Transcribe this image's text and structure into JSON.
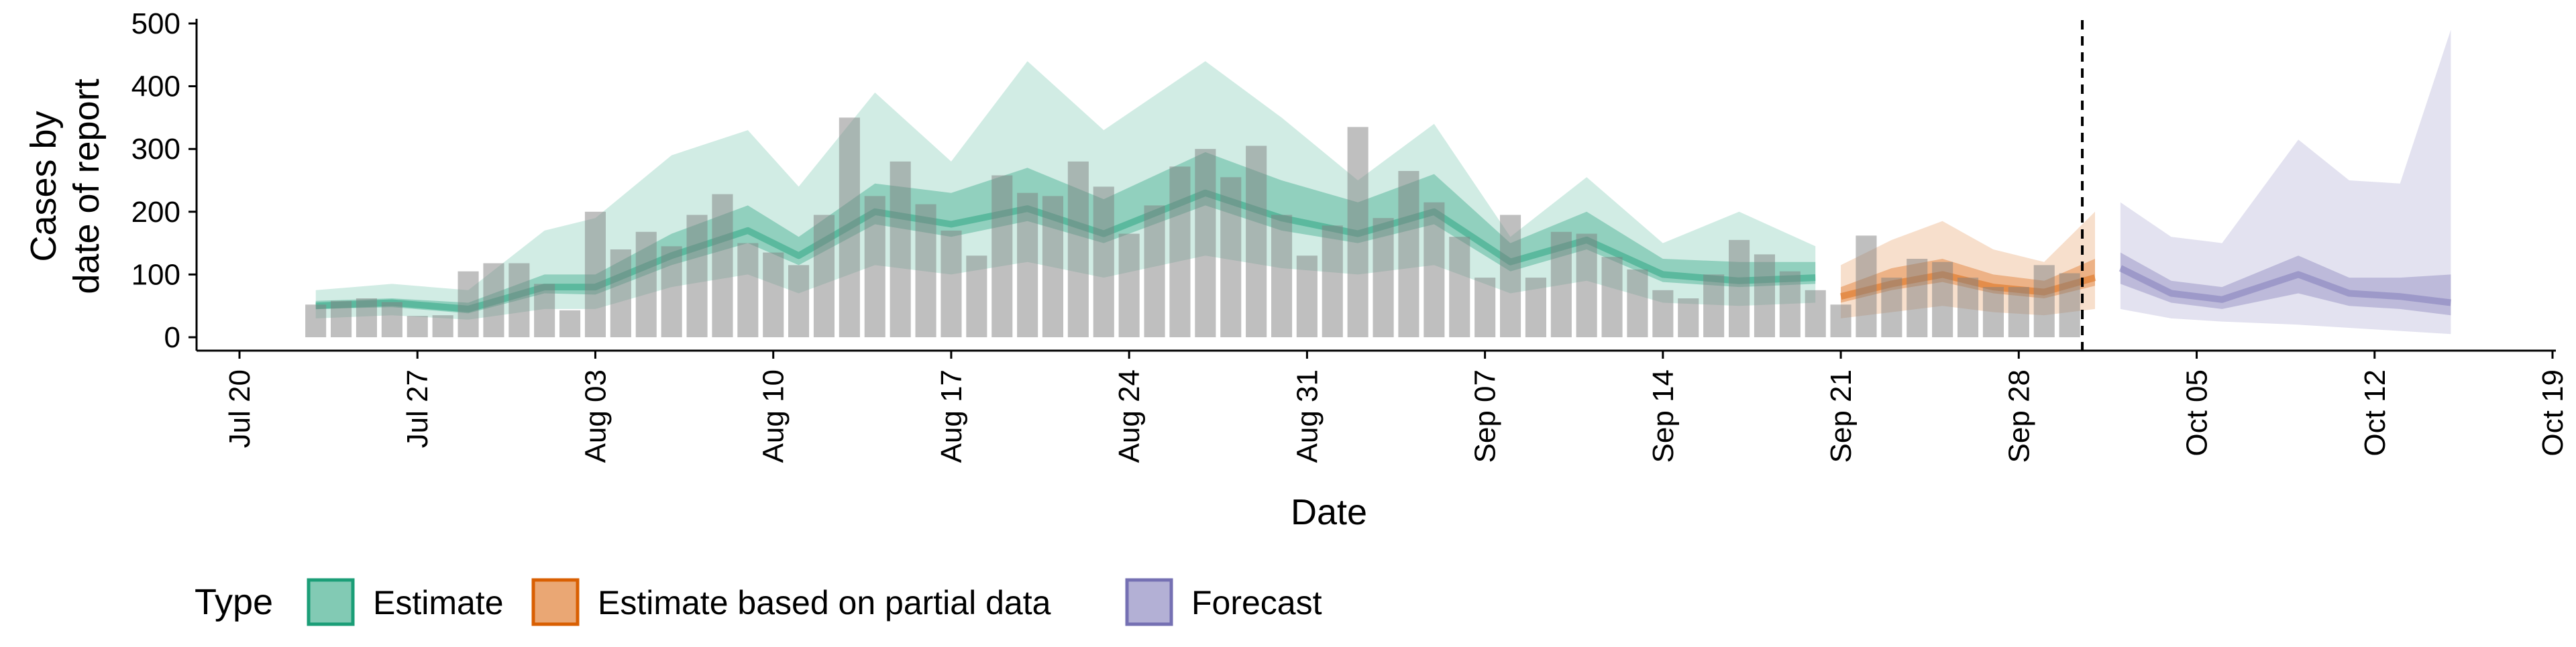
{
  "chart_data": {
    "type": "bar",
    "xlabel": "Date",
    "ylabel_lines": [
      "Cases by",
      "date of report"
    ],
    "ylim": [
      0,
      500
    ],
    "y_ticks": [
      0,
      100,
      200,
      300,
      400,
      500
    ],
    "x_domain": [
      "2020-07-20",
      "2020-10-19"
    ],
    "x_ticks": [
      {
        "date": "2020-07-20",
        "label": "Jul 20"
      },
      {
        "date": "2020-07-27",
        "label": "Jul 27"
      },
      {
        "date": "2020-08-03",
        "label": "Aug 03"
      },
      {
        "date": "2020-08-10",
        "label": "Aug 10"
      },
      {
        "date": "2020-08-17",
        "label": "Aug 17"
      },
      {
        "date": "2020-08-24",
        "label": "Aug 24"
      },
      {
        "date": "2020-08-31",
        "label": "Aug 31"
      },
      {
        "date": "2020-09-07",
        "label": "Sep 07"
      },
      {
        "date": "2020-09-14",
        "label": "Sep 14"
      },
      {
        "date": "2020-09-21",
        "label": "Sep 21"
      },
      {
        "date": "2020-09-28",
        "label": "Sep 28"
      },
      {
        "date": "2020-10-05",
        "label": "Oct 05"
      },
      {
        "date": "2020-10-12",
        "label": "Oct 12"
      },
      {
        "date": "2020-10-19",
        "label": "Oct 19"
      }
    ],
    "forecast_date": "2020-10-01",
    "bars": {
      "start_date": "2020-07-23",
      "values": [
        52,
        58,
        62,
        56,
        34,
        35,
        105,
        118,
        118,
        85,
        43,
        200,
        140,
        168,
        145,
        195,
        228,
        150,
        135,
        115,
        195,
        350,
        225,
        280,
        212,
        170,
        130,
        258,
        230,
        225,
        280,
        240,
        165,
        210,
        272,
        300,
        255,
        305,
        195,
        130,
        178,
        335,
        190,
        265,
        215,
        160,
        95,
        195,
        95,
        168,
        165,
        128,
        108,
        75,
        62,
        100,
        155,
        132,
        105,
        75,
        52,
        162,
        95,
        125,
        120,
        95,
        80,
        80,
        115,
        102
      ]
    },
    "series": [
      {
        "name": "Estimate",
        "color": "#1b9e77",
        "x": [
          "2020-07-23",
          "2020-07-26",
          "2020-07-29",
          "2020-08-01",
          "2020-08-03",
          "2020-08-06",
          "2020-08-09",
          "2020-08-11",
          "2020-08-14",
          "2020-08-17",
          "2020-08-20",
          "2020-08-23",
          "2020-08-27",
          "2020-08-30",
          "2020-09-02",
          "2020-09-05",
          "2020-09-08",
          "2020-09-11",
          "2020-09-14",
          "2020-09-17",
          "2020-09-20"
        ],
        "median": [
          50,
          55,
          45,
          80,
          80,
          130,
          170,
          130,
          200,
          180,
          205,
          165,
          230,
          190,
          165,
          200,
          120,
          155,
          100,
          90,
          95
        ],
        "lower90": [
          30,
          35,
          28,
          45,
          45,
          80,
          100,
          70,
          115,
          100,
          120,
          95,
          130,
          110,
          100,
          115,
          70,
          90,
          55,
          50,
          55
        ],
        "upper90": [
          75,
          85,
          75,
          170,
          190,
          290,
          330,
          240,
          390,
          280,
          440,
          330,
          440,
          350,
          250,
          340,
          160,
          255,
          150,
          200,
          145
        ],
        "lower50": [
          45,
          48,
          38,
          70,
          68,
          115,
          150,
          115,
          180,
          160,
          185,
          150,
          210,
          170,
          150,
          180,
          105,
          140,
          88,
          80,
          85
        ],
        "upper50": [
          58,
          62,
          55,
          100,
          100,
          165,
          210,
          160,
          245,
          230,
          270,
          220,
          295,
          250,
          215,
          260,
          150,
          200,
          125,
          120,
          120
        ]
      },
      {
        "name": "Estimate based on partial data",
        "color": "#d95f02",
        "x": [
          "2020-09-21",
          "2020-09-23",
          "2020-09-25",
          "2020-09-27",
          "2020-09-29",
          "2020-10-01"
        ],
        "median": [
          65,
          85,
          100,
          80,
          72,
          95
        ],
        "lower90": [
          30,
          40,
          50,
          40,
          35,
          45
        ],
        "upper90": [
          115,
          155,
          185,
          140,
          120,
          200
        ],
        "lower50": [
          55,
          75,
          88,
          70,
          62,
          82
        ],
        "upper50": [
          80,
          110,
          125,
          100,
          90,
          125
        ]
      },
      {
        "name": "Forecast",
        "color": "#7570b3",
        "x": [
          "2020-10-02",
          "2020-10-04",
          "2020-10-06",
          "2020-10-09",
          "2020-10-11",
          "2020-10-13",
          "2020-10-15"
        ],
        "median": [
          110,
          70,
          60,
          100,
          70,
          65,
          55
        ],
        "lower90": [
          45,
          30,
          25,
          20,
          15,
          10,
          5
        ],
        "upper90": [
          215,
          160,
          150,
          315,
          250,
          245,
          490
        ],
        "lower50": [
          85,
          55,
          45,
          70,
          50,
          45,
          35
        ],
        "upper50": [
          135,
          90,
          80,
          130,
          95,
          95,
          100
        ]
      }
    ],
    "legend": {
      "title": "Type",
      "position": "bottom",
      "items": [
        {
          "label": "Estimate",
          "color": "#1b9e77"
        },
        {
          "label": "Estimate based on partial data",
          "color": "#d95f02"
        },
        {
          "label": "Forecast",
          "color": "#7570b3"
        }
      ]
    },
    "grid": false
  }
}
